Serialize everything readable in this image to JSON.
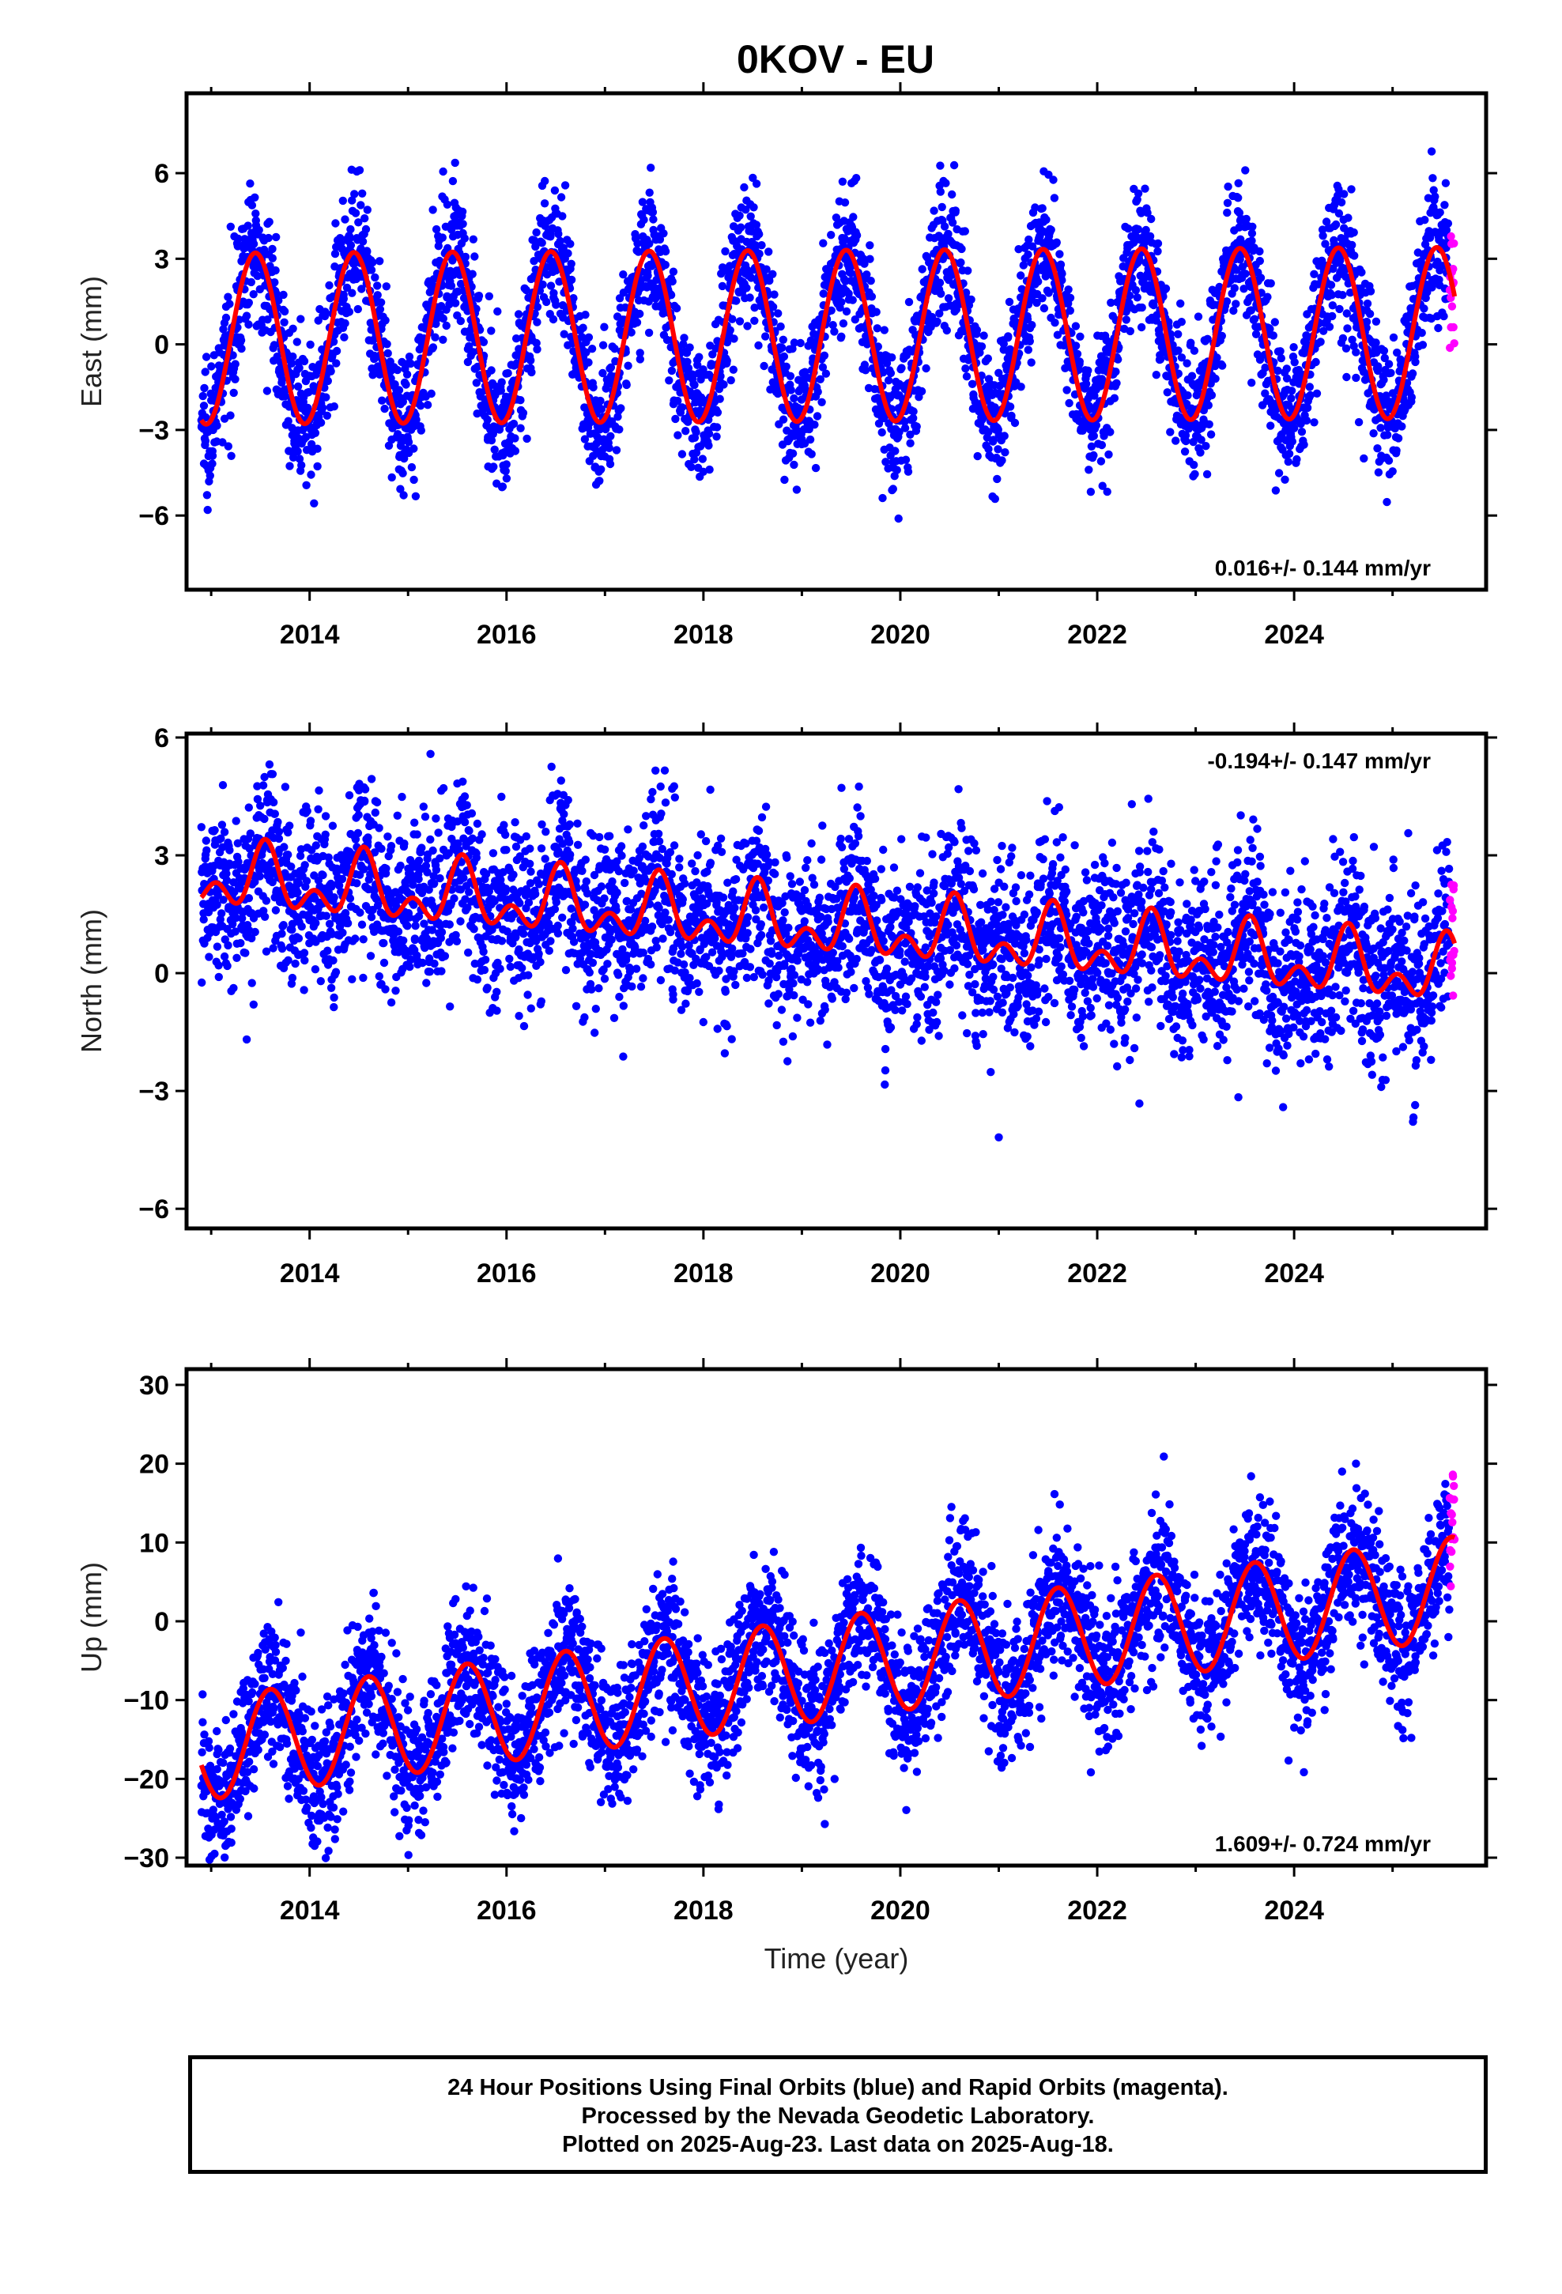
{
  "title": "0KOV - EU",
  "footer": {
    "line1": "24 Hour Positions Using Final Orbits (blue) and Rapid Orbits (magenta).",
    "line2": "Processed by the Nevada Geodetic Laboratory.",
    "line3": "Plotted on 2025-Aug-23. Last data on 2025-Aug-18."
  },
  "colors": {
    "final": "#0000ff",
    "rapid": "#ff00ff",
    "model": "#ff0000",
    "frame": "#000000"
  },
  "chart_data": [
    {
      "type": "scatter",
      "component": "east",
      "ylabel": "East (mm)",
      "xlabel": "",
      "xlim": [
        2012.75,
        2025.95
      ],
      "ylim": [
        -8.6,
        8.8
      ],
      "xticks": [
        2014,
        2016,
        2018,
        2020,
        2022,
        2024
      ],
      "yticks": [
        -6,
        -3,
        0,
        3,
        6
      ],
      "rate_label": "0.016+/- 0.144 mm/yr",
      "rate_position": "bottom-right",
      "data_span": [
        2012.9,
        2025.63
      ],
      "model": {
        "offset": 0.3,
        "annual_amplitude": 3.0,
        "annual_phase_peak": 0.45,
        "trend": 0.016
      },
      "scatter_noise_mm": 1.2,
      "points_per_year": 320,
      "rapid_span": [
        2025.58,
        2025.63
      ],
      "final_series": "blue daily positions",
      "rapid_series": "magenta daily positions"
    },
    {
      "type": "scatter",
      "component": "north",
      "ylabel": "North (mm)",
      "xlabel": "",
      "xlim": [
        2012.75,
        2025.95
      ],
      "ylim": [
        -6.5,
        6.1
      ],
      "xticks": [
        2014,
        2016,
        2018,
        2020,
        2022,
        2024
      ],
      "yticks": [
        -6,
        -3,
        0,
        3
      ],
      "ytick_top": 6,
      "rate_label": "-0.194+/- 0.147 mm/yr",
      "rate_position": "top-right",
      "data_span": [
        2012.9,
        2025.63
      ],
      "model": {
        "offset": 1.2,
        "annual_amplitude": 0.6,
        "semiannual_amplitude": 0.5,
        "annual_phase_peak": 0.55,
        "trend": -0.194
      },
      "scatter_noise_mm": 1.1,
      "points_per_year": 320,
      "rapid_span": [
        2025.58,
        2025.63
      ]
    },
    {
      "type": "scatter",
      "component": "up",
      "ylabel": "Up (mm)",
      "xlabel": "Time (year)",
      "xlim": [
        2012.75,
        2025.95
      ],
      "ylim": [
        -31,
        32
      ],
      "xticks": [
        2014,
        2016,
        2018,
        2020,
        2022,
        2024
      ],
      "yticks": [
        -30,
        -20,
        -10,
        0,
        10,
        20,
        30
      ],
      "rate_label": "1.609+/- 0.724 mm/yr",
      "rate_position": "bottom-right",
      "data_span": [
        2012.9,
        2025.63
      ],
      "model": {
        "offset": -6.0,
        "annual_amplitude": 6.5,
        "annual_phase_peak": 0.6,
        "trend": 1.609
      },
      "scatter_noise_mm": 4.5,
      "points_per_year": 320,
      "rapid_span": [
        2025.58,
        2025.63
      ]
    }
  ]
}
